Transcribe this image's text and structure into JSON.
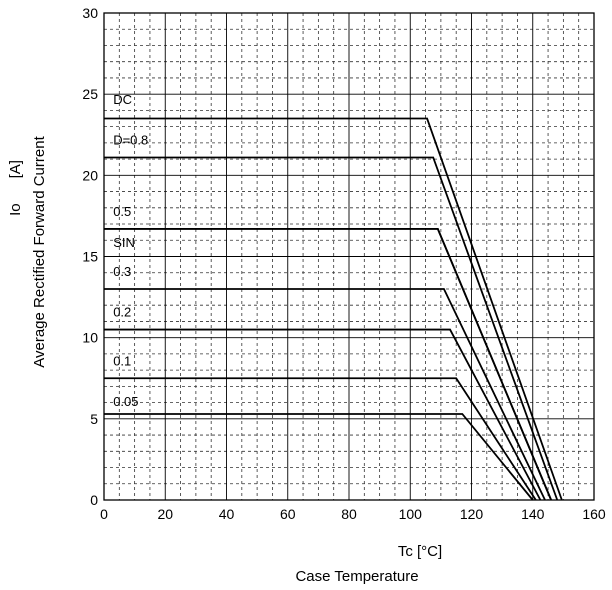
{
  "chart_data": {
    "type": "line",
    "xlabel_symbol": "Tc  [°C]",
    "xlabel": "Case Temperature",
    "ylabel_symbol": "Io      [A]",
    "ylabel": "Average Rectified Forward Current",
    "xlim": [
      0,
      160
    ],
    "ylim": [
      0,
      30
    ],
    "x_ticks": [
      0,
      20,
      40,
      60,
      80,
      100,
      120,
      140,
      160
    ],
    "y_ticks": [
      0,
      5,
      10,
      15,
      20,
      25,
      30
    ],
    "grid": true,
    "series": [
      {
        "name": "DC",
        "x": [
          0,
          105.5,
          149.5
        ],
        "y": [
          23.5,
          23.5,
          0
        ]
      },
      {
        "name": "D=0.8",
        "x": [
          0,
          107.5,
          148
        ],
        "y": [
          21.1,
          21.1,
          0
        ]
      },
      {
        "name": "0.5",
        "x": [
          0,
          109,
          146
        ],
        "y": [
          16.7,
          16.7,
          0
        ]
      },
      {
        "name": "SIN",
        "x": [
          0,
          109,
          146
        ],
        "y": [
          16.7,
          16.7,
          0
        ]
      },
      {
        "name": "0.3",
        "x": [
          0,
          111,
          144
        ],
        "y": [
          13.0,
          13.0,
          0
        ]
      },
      {
        "name": "0.2",
        "x": [
          0,
          113,
          142.5
        ],
        "y": [
          10.5,
          10.5,
          0
        ]
      },
      {
        "name": "0.1",
        "x": [
          0,
          115,
          141
        ],
        "y": [
          7.5,
          7.5,
          0
        ]
      },
      {
        "name": "0.05",
        "x": [
          0,
          117,
          140
        ],
        "y": [
          5.3,
          5.3,
          0
        ]
      }
    ],
    "labels": [
      {
        "text": "DC",
        "x": 3,
        "y": 24.4
      },
      {
        "text": "D=0.8",
        "x": 3,
        "y": 21.9
      },
      {
        "text": "0.5",
        "x": 3,
        "y": 17.5
      },
      {
        "text": "SIN",
        "x": 3,
        "y": 15.6
      },
      {
        "text": "0.3",
        "x": 3,
        "y": 13.8
      },
      {
        "text": "0.2",
        "x": 3,
        "y": 11.3
      },
      {
        "text": "0.1",
        "x": 3,
        "y": 8.3
      },
      {
        "text": "0.05",
        "x": 3,
        "y": 5.8
      }
    ]
  }
}
